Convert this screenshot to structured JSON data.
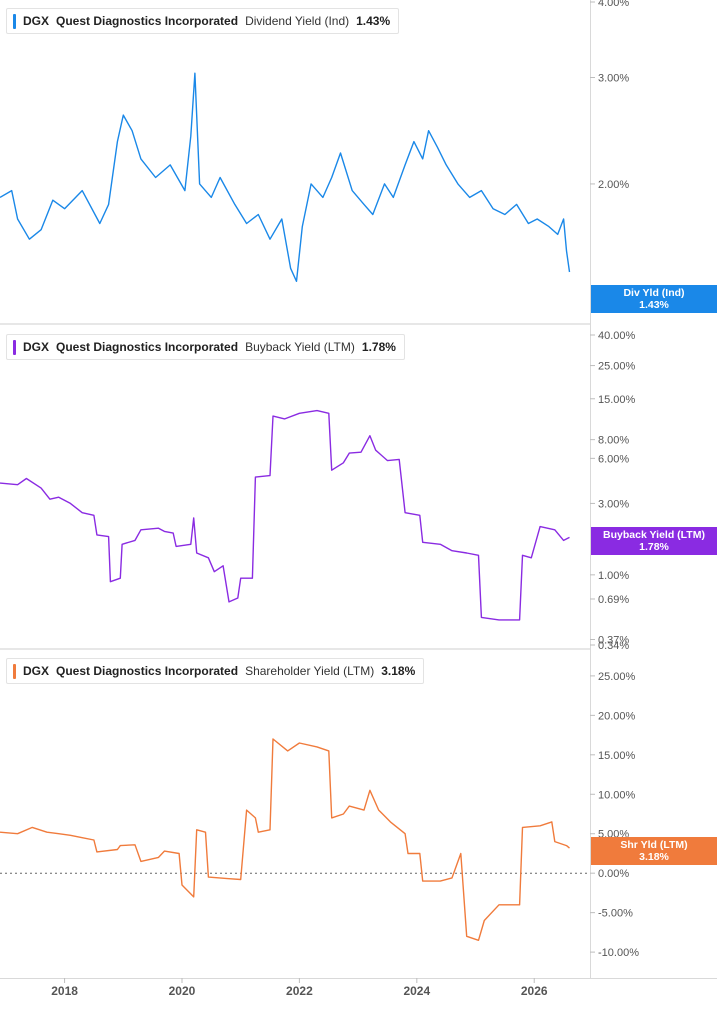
{
  "panels": [
    {
      "ticker": "DGX",
      "company": "Quest Diagnostics Incorporated",
      "metric": "Dividend Yield (Ind)",
      "value": "1.43%",
      "color": "#1a88e8",
      "badge_label": "Div Yld (Ind)",
      "badge_value": "1.43%"
    },
    {
      "ticker": "DGX",
      "company": "Quest Diagnostics Incorporated",
      "metric": "Buyback Yield (LTM)",
      "value": "1.78%",
      "color": "#8a2be2",
      "badge_label": "Buyback Yield (LTM)",
      "badge_value": "1.78%"
    },
    {
      "ticker": "DGX",
      "company": "Quest Diagnostics Incorporated",
      "metric": "Shareholder Yield (LTM)",
      "value": "3.18%",
      "color": "#f07b3c",
      "badge_label": "Shr Yld (LTM)",
      "badge_value": "3.18%"
    }
  ],
  "x_axis_labels": [
    "2018",
    "2020",
    "2022",
    "2024",
    "2026"
  ],
  "chart_data": [
    {
      "type": "line",
      "title": "DGX Quest Diagnostics Incorporated Dividend Yield (Ind) 1.43%",
      "x_range": [
        2016.9,
        2026.95
      ],
      "y_scale": "log",
      "ylim": [
        1.3,
        4.0
      ],
      "y_ticks": [
        "4.00%",
        "3.00%",
        "2.00%"
      ],
      "y_tick_values": [
        4.0,
        3.0,
        2.0
      ],
      "series": [
        {
          "name": "Dividend Yield (Ind)",
          "points": [
            [
              2016.9,
              1.9
            ],
            [
              2017.1,
              1.95
            ],
            [
              2017.2,
              1.75
            ],
            [
              2017.4,
              1.62
            ],
            [
              2017.6,
              1.68
            ],
            [
              2017.8,
              1.88
            ],
            [
              2018.0,
              1.82
            ],
            [
              2018.3,
              1.95
            ],
            [
              2018.6,
              1.72
            ],
            [
              2018.75,
              1.85
            ],
            [
              2018.9,
              2.35
            ],
            [
              2019.0,
              2.6
            ],
            [
              2019.15,
              2.45
            ],
            [
              2019.3,
              2.2
            ],
            [
              2019.55,
              2.05
            ],
            [
              2019.8,
              2.15
            ],
            [
              2020.05,
              1.95
            ],
            [
              2020.15,
              2.4
            ],
            [
              2020.22,
              3.05
            ],
            [
              2020.3,
              2.0
            ],
            [
              2020.5,
              1.9
            ],
            [
              2020.65,
              2.05
            ],
            [
              2020.9,
              1.85
            ],
            [
              2021.1,
              1.72
            ],
            [
              2021.3,
              1.78
            ],
            [
              2021.5,
              1.62
            ],
            [
              2021.7,
              1.75
            ],
            [
              2021.85,
              1.45
            ],
            [
              2021.95,
              1.38
            ],
            [
              2022.05,
              1.7
            ],
            [
              2022.2,
              2.0
            ],
            [
              2022.4,
              1.9
            ],
            [
              2022.55,
              2.05
            ],
            [
              2022.7,
              2.25
            ],
            [
              2022.9,
              1.95
            ],
            [
              2023.1,
              1.85
            ],
            [
              2023.25,
              1.78
            ],
            [
              2023.45,
              2.0
            ],
            [
              2023.6,
              1.9
            ],
            [
              2023.8,
              2.15
            ],
            [
              2023.95,
              2.35
            ],
            [
              2024.1,
              2.2
            ],
            [
              2024.2,
              2.45
            ],
            [
              2024.35,
              2.3
            ],
            [
              2024.5,
              2.15
            ],
            [
              2024.7,
              2.0
            ],
            [
              2024.9,
              1.9
            ],
            [
              2025.1,
              1.95
            ],
            [
              2025.3,
              1.82
            ],
            [
              2025.5,
              1.78
            ],
            [
              2025.7,
              1.85
            ],
            [
              2025.9,
              1.72
            ],
            [
              2026.05,
              1.75
            ],
            [
              2026.25,
              1.7
            ],
            [
              2026.4,
              1.65
            ],
            [
              2026.5,
              1.75
            ],
            [
              2026.55,
              1.55
            ],
            [
              2026.6,
              1.43
            ]
          ]
        }
      ]
    },
    {
      "type": "line",
      "title": "DGX Quest Diagnostics Incorporated Buyback Yield (LTM) 1.78%",
      "x_range": [
        2016.9,
        2026.95
      ],
      "y_scale": "log",
      "ylim": [
        0.34,
        40.0
      ],
      "y_ticks": [
        "40.00%",
        "25.00%",
        "15.00%",
        "8.00%",
        "6.00%",
        "3.00%",
        "1.00%",
        "0.69%",
        "0.37%",
        "0.34%"
      ],
      "y_tick_values": [
        40.0,
        25.0,
        15.0,
        8.0,
        6.0,
        3.0,
        1.0,
        0.69,
        0.37,
        0.34
      ],
      "series": [
        {
          "name": "Buyback Yield (LTM)",
          "points": [
            [
              2016.9,
              4.1
            ],
            [
              2017.2,
              4.0
            ],
            [
              2017.35,
              4.4
            ],
            [
              2017.6,
              3.8
            ],
            [
              2017.75,
              3.2
            ],
            [
              2017.9,
              3.3
            ],
            [
              2018.1,
              3.0
            ],
            [
              2018.3,
              2.6
            ],
            [
              2018.5,
              2.5
            ],
            [
              2018.55,
              1.85
            ],
            [
              2018.75,
              1.8
            ],
            [
              2018.78,
              0.9
            ],
            [
              2018.95,
              0.95
            ],
            [
              2018.98,
              1.6
            ],
            [
              2019.2,
              1.7
            ],
            [
              2019.3,
              2.0
            ],
            [
              2019.6,
              2.05
            ],
            [
              2019.7,
              1.95
            ],
            [
              2019.85,
              1.9
            ],
            [
              2019.9,
              1.55
            ],
            [
              2020.15,
              1.6
            ],
            [
              2020.2,
              2.4
            ],
            [
              2020.25,
              1.4
            ],
            [
              2020.45,
              1.3
            ],
            [
              2020.55,
              1.05
            ],
            [
              2020.7,
              1.15
            ],
            [
              2020.8,
              0.66
            ],
            [
              2020.95,
              0.7
            ],
            [
              2021.0,
              0.95
            ],
            [
              2021.2,
              0.95
            ],
            [
              2021.25,
              4.5
            ],
            [
              2021.5,
              4.6
            ],
            [
              2021.55,
              11.5
            ],
            [
              2021.75,
              11.0
            ],
            [
              2022.0,
              12.0
            ],
            [
              2022.3,
              12.5
            ],
            [
              2022.5,
              12.0
            ],
            [
              2022.55,
              5.0
            ],
            [
              2022.75,
              5.6
            ],
            [
              2022.85,
              6.5
            ],
            [
              2023.05,
              6.6
            ],
            [
              2023.2,
              8.5
            ],
            [
              2023.3,
              6.8
            ],
            [
              2023.5,
              5.8
            ],
            [
              2023.7,
              5.9
            ],
            [
              2023.8,
              2.6
            ],
            [
              2024.05,
              2.5
            ],
            [
              2024.1,
              1.65
            ],
            [
              2024.4,
              1.6
            ],
            [
              2024.6,
              1.45
            ],
            [
              2024.85,
              1.4
            ],
            [
              2025.05,
              1.35
            ],
            [
              2025.1,
              0.52
            ],
            [
              2025.4,
              0.5
            ],
            [
              2025.75,
              0.5
            ],
            [
              2025.8,
              1.35
            ],
            [
              2025.95,
              1.3
            ],
            [
              2026.1,
              2.1
            ],
            [
              2026.35,
              2.0
            ],
            [
              2026.5,
              1.7
            ],
            [
              2026.6,
              1.78
            ]
          ]
        }
      ]
    },
    {
      "type": "line",
      "title": "DGX Quest Diagnostics Incorporated Shareholder Yield (LTM) 3.18%",
      "x_range": [
        2016.9,
        2026.95
      ],
      "y_scale": "linear",
      "ylim": [
        -11.0,
        26.0
      ],
      "y_ticks": [
        "25.00%",
        "20.00%",
        "15.00%",
        "10.00%",
        "5.00%",
        "0.00%",
        "-5.00%",
        "-10.00%"
      ],
      "y_tick_values": [
        25,
        20,
        15,
        10,
        5,
        0,
        -5,
        -10
      ],
      "zero_line": true,
      "series": [
        {
          "name": "Shareholder Yield (LTM)",
          "points": [
            [
              2016.9,
              5.2
            ],
            [
              2017.2,
              5.0
            ],
            [
              2017.45,
              5.8
            ],
            [
              2017.7,
              5.2
            ],
            [
              2017.9,
              5.0
            ],
            [
              2018.1,
              4.8
            ],
            [
              2018.3,
              4.5
            ],
            [
              2018.5,
              4.2
            ],
            [
              2018.55,
              2.7
            ],
            [
              2018.9,
              3.0
            ],
            [
              2018.95,
              3.5
            ],
            [
              2019.2,
              3.6
            ],
            [
              2019.3,
              1.5
            ],
            [
              2019.6,
              2.0
            ],
            [
              2019.7,
              2.8
            ],
            [
              2019.95,
              2.5
            ],
            [
              2020.0,
              -1.5
            ],
            [
              2020.2,
              -3.0
            ],
            [
              2020.25,
              5.5
            ],
            [
              2020.4,
              5.2
            ],
            [
              2020.45,
              -0.5
            ],
            [
              2020.8,
              -0.7
            ],
            [
              2021.0,
              -0.8
            ],
            [
              2021.1,
              8.0
            ],
            [
              2021.25,
              7.0
            ],
            [
              2021.3,
              5.2
            ],
            [
              2021.5,
              5.5
            ],
            [
              2021.55,
              17.0
            ],
            [
              2021.8,
              15.5
            ],
            [
              2022.0,
              16.5
            ],
            [
              2022.3,
              16.0
            ],
            [
              2022.5,
              15.5
            ],
            [
              2022.55,
              7.0
            ],
            [
              2022.75,
              7.5
            ],
            [
              2022.85,
              8.5
            ],
            [
              2023.1,
              8.0
            ],
            [
              2023.2,
              10.5
            ],
            [
              2023.35,
              8.0
            ],
            [
              2023.55,
              6.5
            ],
            [
              2023.8,
              5.0
            ],
            [
              2023.85,
              2.5
            ],
            [
              2024.05,
              2.5
            ],
            [
              2024.1,
              -1.0
            ],
            [
              2024.4,
              -1.0
            ],
            [
              2024.6,
              -0.6
            ],
            [
              2024.75,
              2.5
            ],
            [
              2024.85,
              -8.0
            ],
            [
              2025.05,
              -8.5
            ],
            [
              2025.15,
              -6.0
            ],
            [
              2025.4,
              -4.0
            ],
            [
              2025.75,
              -4.0
            ],
            [
              2025.8,
              5.8
            ],
            [
              2026.1,
              6.0
            ],
            [
              2026.3,
              6.5
            ],
            [
              2026.35,
              4.0
            ],
            [
              2026.55,
              3.5
            ],
            [
              2026.6,
              3.18
            ]
          ]
        }
      ]
    }
  ]
}
